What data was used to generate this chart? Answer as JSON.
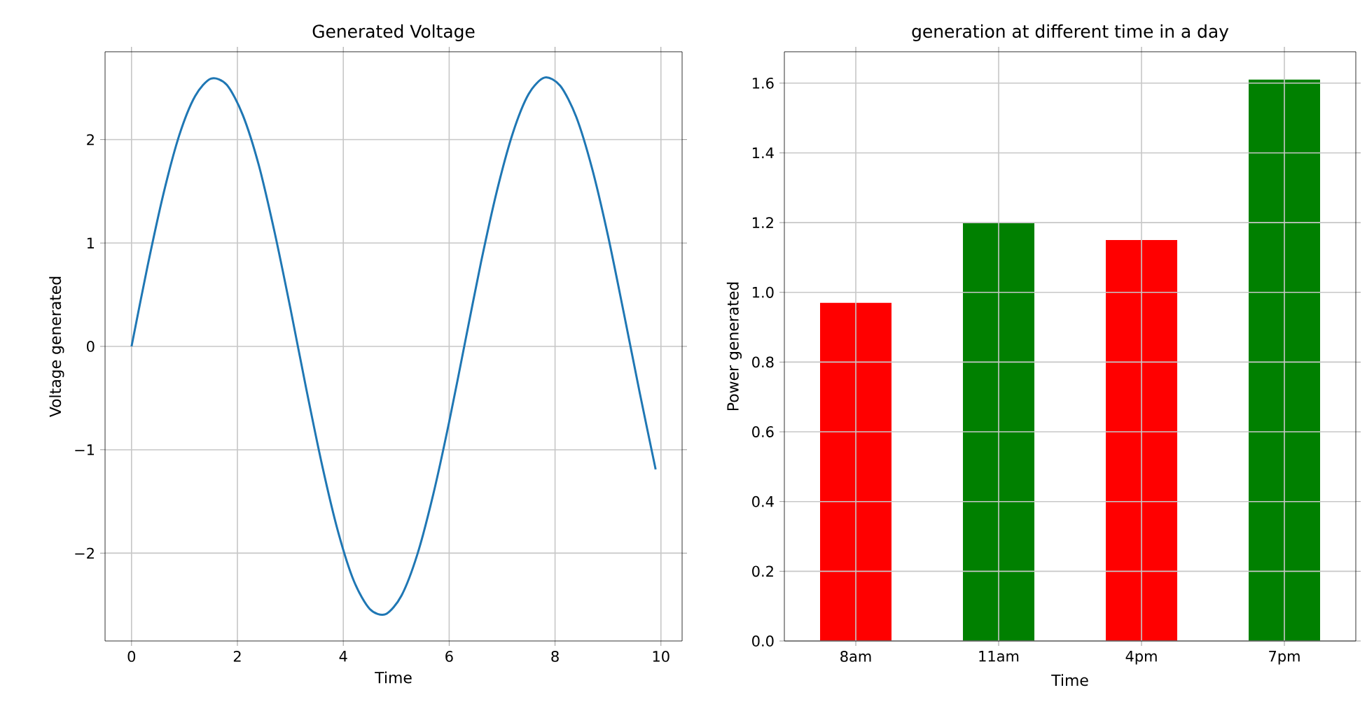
{
  "chart_data": [
    {
      "type": "line",
      "title": "Generated Voltage",
      "xlabel": "Time",
      "ylabel": "Voltage generated",
      "color": "#1f77b4",
      "grid": true,
      "x": [
        0,
        0.3,
        0.6,
        0.9,
        1.2,
        1.5,
        1.8,
        2.1,
        2.4,
        2.7,
        3.0,
        3.3,
        3.6,
        3.9,
        4.2,
        4.5,
        4.8,
        5.1,
        5.4,
        5.7,
        6.0,
        6.3,
        6.6,
        6.9,
        7.2,
        7.5,
        7.8,
        8.1,
        8.4,
        8.7,
        9.0,
        9.3,
        9.6,
        9.9
      ],
      "values": [
        0,
        0.77,
        1.47,
        2.04,
        2.42,
        2.59,
        2.53,
        2.24,
        1.76,
        1.11,
        0.37,
        -0.41,
        -1.15,
        -1.79,
        -2.27,
        -2.54,
        -2.59,
        -2.41,
        -2.01,
        -1.43,
        -0.73,
        0.04,
        0.81,
        1.5,
        2.06,
        2.44,
        2.6,
        2.52,
        2.22,
        1.72,
        1.07,
        0.32,
        -0.45,
        -1.19
      ],
      "xlim": [
        -0.5,
        10.4
      ],
      "ylim": [
        -2.85,
        2.85
      ],
      "xticks": [
        0,
        2,
        4,
        6,
        8,
        10
      ],
      "yticks": [
        {
          "value": -2,
          "label": "−2"
        },
        {
          "value": -1,
          "label": "−1"
        },
        0,
        1,
        2
      ]
    },
    {
      "type": "bar",
      "title": "generation at different time in a day",
      "xlabel": "Time",
      "ylabel": "Power generated",
      "grid": true,
      "categories": [
        "8am",
        "11am",
        "4pm",
        "7pm"
      ],
      "values": [
        0.97,
        1.2,
        1.15,
        1.61
      ],
      "colors": [
        "#ff0000",
        "#008000",
        "#ff0000",
        "#008000"
      ],
      "ylim": [
        0,
        1.69
      ],
      "yticks": [
        {
          "value": 0,
          "label": "0.0"
        },
        0.2,
        0.4,
        0.6,
        0.8,
        {
          "value": 1,
          "label": "1.0"
        },
        1.2,
        1.4,
        1.6
      ]
    }
  ]
}
